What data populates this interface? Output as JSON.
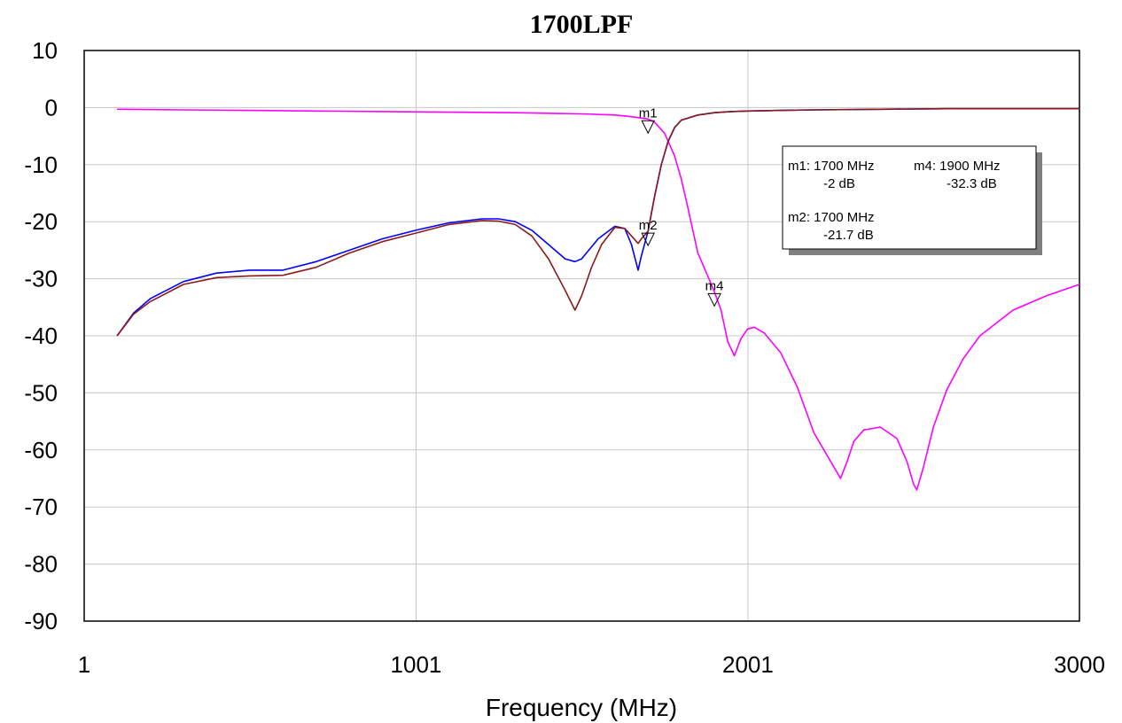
{
  "chart_data": {
    "type": "line",
    "title": "1700LPF",
    "xlabel": "Frequency (MHz)",
    "ylabel": "",
    "xlim": [
      1,
      3000
    ],
    "ylim": [
      -90,
      10
    ],
    "xticks": [
      1,
      1001,
      2001,
      3000
    ],
    "xtick_labels": [
      "1",
      "1001",
      "2001",
      "3000"
    ],
    "yticks": [
      10,
      0,
      -10,
      -20,
      -30,
      -40,
      -50,
      -60,
      -70,
      -80,
      -90
    ],
    "ytick_labels": [
      "10",
      "0",
      "-10",
      "-20",
      "-30",
      "-40",
      "-50",
      "-60",
      "-70",
      "-80",
      "-90"
    ],
    "grid": true,
    "colors": {
      "series1": "#ff00ff",
      "series2": "#0000ff",
      "series3": "#8b1a1a"
    },
    "series": [
      {
        "color": "#ff00ff",
        "x": [
          100,
          300,
          500,
          700,
          900,
          1100,
          1300,
          1500,
          1600,
          1650,
          1700,
          1720,
          1750,
          1780,
          1800,
          1820,
          1850,
          1880,
          1900,
          1920,
          1940,
          1960,
          1980,
          2000,
          2020,
          2050,
          2100,
          2150,
          2200,
          2250,
          2280,
          2300,
          2320,
          2350,
          2400,
          2450,
          2480,
          2500,
          2510,
          2530,
          2560,
          2600,
          2650,
          2700,
          2800,
          2900,
          3000
        ],
        "y": [
          -0.3,
          -0.4,
          -0.5,
          -0.6,
          -0.7,
          -0.8,
          -0.9,
          -1.1,
          -1.3,
          -1.6,
          -2.0,
          -2.6,
          -4.5,
          -8.5,
          -12.5,
          -17.5,
          -25.5,
          -29.5,
          -32.3,
          -35.5,
          -41,
          -43.5,
          -40.5,
          -38.8,
          -38.5,
          -39.5,
          -43,
          -49,
          -57,
          -62,
          -65,
          -62,
          -58.5,
          -56.5,
          -56,
          -58,
          -62,
          -66,
          -67,
          -63,
          -56,
          -49.5,
          -44,
          -40,
          -35.5,
          -33,
          -31
        ]
      },
      {
        "color": "#0000ff",
        "x": [
          100,
          150,
          200,
          300,
          400,
          500,
          600,
          700,
          800,
          900,
          1000,
          1100,
          1200,
          1250,
          1300,
          1350,
          1400,
          1450,
          1480,
          1500,
          1550,
          1600,
          1630,
          1650,
          1670,
          1680,
          1700,
          1720,
          1740,
          1760,
          1780,
          1800,
          1850,
          1900,
          1950,
          2000,
          2100,
          2200,
          2400,
          2600,
          2800,
          3000
        ],
        "y": [
          -40,
          -36,
          -33.5,
          -30.5,
          -29,
          -28.5,
          -28.5,
          -27,
          -25,
          -23,
          -21.5,
          -20.2,
          -19.5,
          -19.5,
          -20,
          -21.5,
          -24,
          -26.5,
          -27,
          -26.5,
          -23,
          -20.8,
          -21.2,
          -24,
          -28.5,
          -26,
          -21.7,
          -15.5,
          -10,
          -6,
          -3.5,
          -2.2,
          -1.3,
          -0.9,
          -0.7,
          -0.6,
          -0.5,
          -0.4,
          -0.3,
          -0.2,
          -0.2,
          -0.2
        ]
      },
      {
        "color": "#8b1a1a",
        "x": [
          100,
          150,
          200,
          300,
          400,
          500,
          600,
          700,
          800,
          900,
          1000,
          1100,
          1200,
          1250,
          1300,
          1350,
          1400,
          1450,
          1480,
          1500,
          1530,
          1560,
          1600,
          1630,
          1650,
          1670,
          1680,
          1700,
          1720,
          1740,
          1760,
          1780,
          1800,
          1850,
          1900,
          1950,
          2000,
          2100,
          2200,
          2400,
          2600,
          2800,
          3000
        ],
        "y": [
          -40,
          -36.2,
          -34,
          -31,
          -29.8,
          -29.5,
          -29.4,
          -28,
          -25.5,
          -23.5,
          -22,
          -20.5,
          -19.8,
          -19.9,
          -20.5,
          -22.5,
          -26.5,
          -32,
          -35.5,
          -33,
          -28,
          -24,
          -21,
          -21.2,
          -22.5,
          -23.8,
          -23,
          -21.7,
          -15.5,
          -10,
          -6,
          -3.5,
          -2.2,
          -1.3,
          -0.9,
          -0.7,
          -0.6,
          -0.5,
          -0.4,
          -0.3,
          -0.2,
          -0.2,
          -0.2
        ]
      }
    ],
    "markers": [
      {
        "label": "m1",
        "x": 1700,
        "y": -2
      },
      {
        "label": "m2",
        "x": 1700,
        "y": -21.7
      },
      {
        "label": "m4",
        "x": 1900,
        "y": -32.3
      }
    ],
    "marker_table": [
      {
        "head": "m1: 1700 MHz",
        "value": "-2 dB"
      },
      {
        "head": "m4: 1900 MHz",
        "value": "-32.3 dB"
      },
      {
        "head": "m2: 1700 MHz",
        "value": "-21.7 dB"
      }
    ],
    "legend_placement": "top-right"
  }
}
